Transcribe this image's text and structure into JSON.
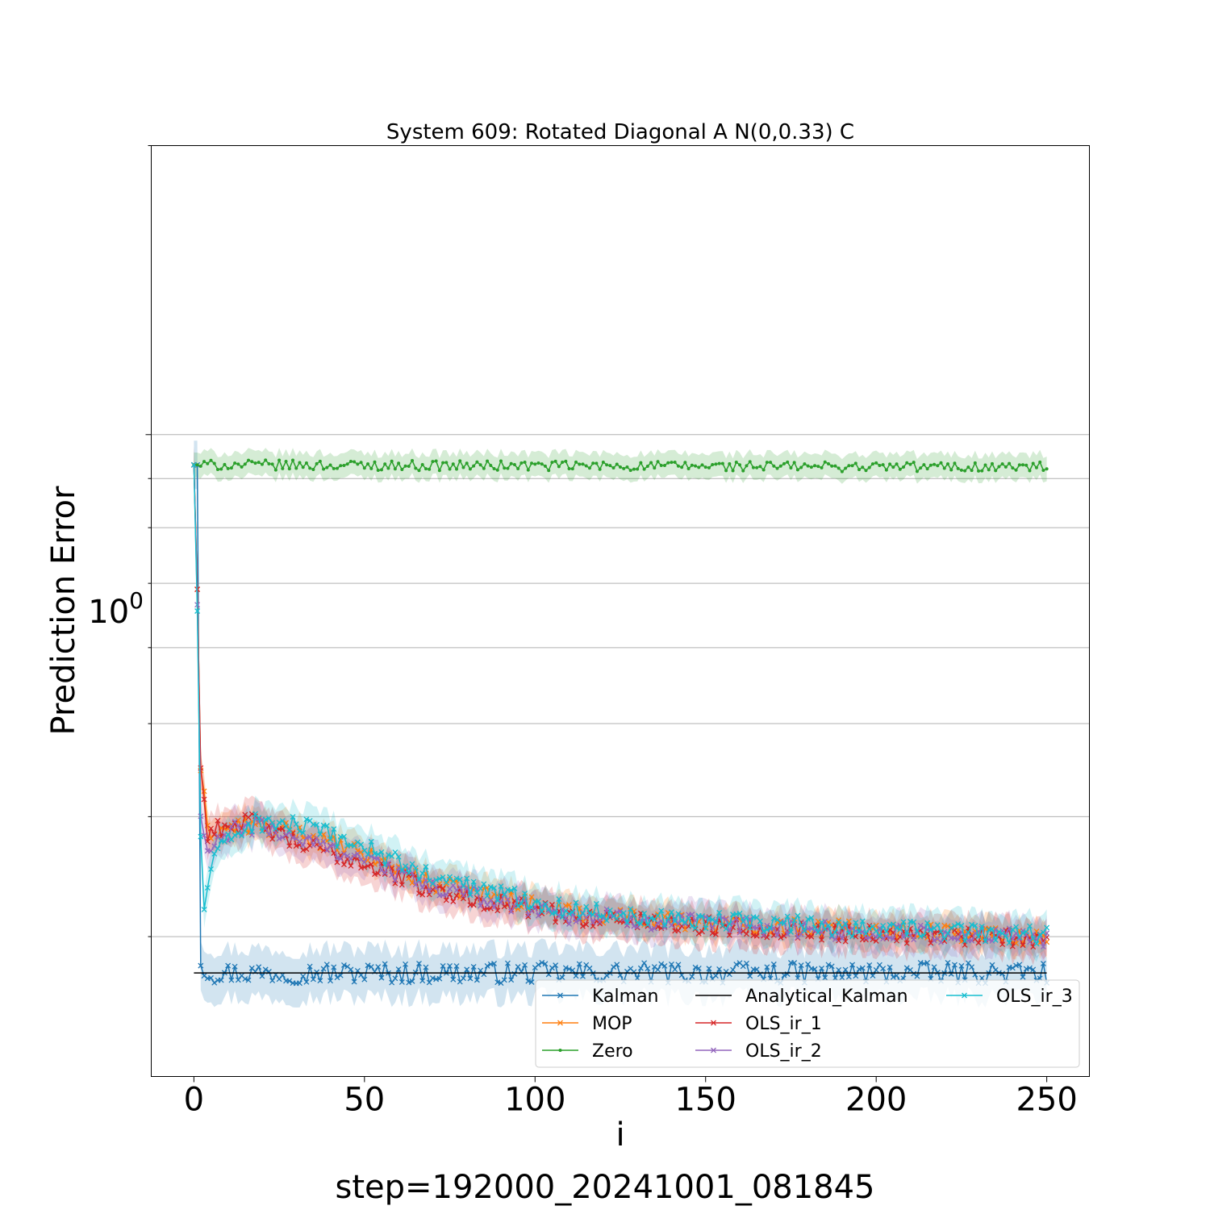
{
  "chart_data": {
    "type": "line",
    "title": "System 609: Rotated Diagonal A N(0,0.33) C",
    "xlabel": "i",
    "ylabel": "Prediction Error",
    "footer": "step=192000_20241001_081845",
    "xlim": [
      -12.5,
      262.5
    ],
    "ylim": [
      0.2145,
      2.0
    ],
    "y_scale": "log",
    "x_ticks": [
      "0",
      "50",
      "100",
      "150",
      "200",
      "250"
    ],
    "y_tick_base": "10",
    "y_tick_exponent": "0",
    "grid": "horizontal",
    "legend": {
      "position": "lower-right",
      "columns": 3
    },
    "series": [
      {
        "name": "Kalman",
        "color": "#1f77b4",
        "marker": "x",
        "start": 0.93,
        "curve": [
          [
            0,
            0.93
          ],
          [
            1,
            0.93
          ],
          [
            2,
            0.283
          ],
          [
            4,
            0.275
          ],
          [
            250,
            0.275
          ]
        ],
        "band": 0.06,
        "noise": 0.025
      },
      {
        "name": "MOP",
        "color": "#ff7f0e",
        "marker": "x",
        "start": 0.93,
        "curve": [
          [
            0,
            0.93
          ],
          [
            2,
            0.45
          ],
          [
            4,
            0.385
          ],
          [
            15,
            0.392
          ],
          [
            30,
            0.385
          ],
          [
            50,
            0.365
          ],
          [
            70,
            0.34
          ],
          [
            90,
            0.33
          ],
          [
            110,
            0.318
          ],
          [
            150,
            0.31
          ],
          [
            200,
            0.305
          ],
          [
            250,
            0.3
          ]
        ],
        "band": 0.04,
        "noise": 0.02
      },
      {
        "name": "Zero",
        "color": "#2ca02c",
        "marker": "dot",
        "start": 0.93,
        "curve": [
          [
            0,
            0.93
          ],
          [
            250,
            0.925
          ]
        ],
        "band": 0.03,
        "noise": 0.012
      },
      {
        "name": "Analytical_Kalman",
        "color": "#000000",
        "marker": "none",
        "start": 0.275,
        "curve": [
          [
            0,
            0.275
          ],
          [
            250,
            0.275
          ]
        ],
        "band": 0,
        "noise": 0
      },
      {
        "name": "OLS_ir_1",
        "color": "#d62728",
        "marker": "x",
        "start": 0.93,
        "curve": [
          [
            0,
            0.93
          ],
          [
            2,
            0.45
          ],
          [
            3,
            0.415
          ],
          [
            4,
            0.385
          ],
          [
            10,
            0.392
          ],
          [
            18,
            0.395
          ],
          [
            30,
            0.375
          ],
          [
            50,
            0.358
          ],
          [
            70,
            0.335
          ],
          [
            90,
            0.325
          ],
          [
            110,
            0.315
          ],
          [
            150,
            0.308
          ],
          [
            200,
            0.302
          ],
          [
            250,
            0.298
          ]
        ],
        "band": 0.045,
        "noise": 0.022
      },
      {
        "name": "OLS_ir_2",
        "color": "#9467bd",
        "marker": "x",
        "start": 0.93,
        "curve": [
          [
            0,
            0.93
          ],
          [
            2,
            0.4
          ],
          [
            4,
            0.365
          ],
          [
            10,
            0.385
          ],
          [
            18,
            0.392
          ],
          [
            30,
            0.38
          ],
          [
            50,
            0.362
          ],
          [
            70,
            0.337
          ],
          [
            90,
            0.327
          ],
          [
            110,
            0.316
          ],
          [
            150,
            0.309
          ],
          [
            200,
            0.303
          ],
          [
            250,
            0.299
          ]
        ],
        "band": 0.045,
        "noise": 0.022
      },
      {
        "name": "OLS_ir_3",
        "color": "#17becf",
        "marker": "x",
        "start": 0.93,
        "curve": [
          [
            0,
            0.93
          ],
          [
            2,
            0.38
          ],
          [
            3,
            0.322
          ],
          [
            5,
            0.355
          ],
          [
            10,
            0.38
          ],
          [
            18,
            0.395
          ],
          [
            30,
            0.392
          ],
          [
            50,
            0.372
          ],
          [
            70,
            0.345
          ],
          [
            90,
            0.333
          ],
          [
            110,
            0.32
          ],
          [
            150,
            0.312
          ],
          [
            200,
            0.306
          ],
          [
            250,
            0.301
          ]
        ],
        "band": 0.045,
        "noise": 0.022
      }
    ]
  }
}
